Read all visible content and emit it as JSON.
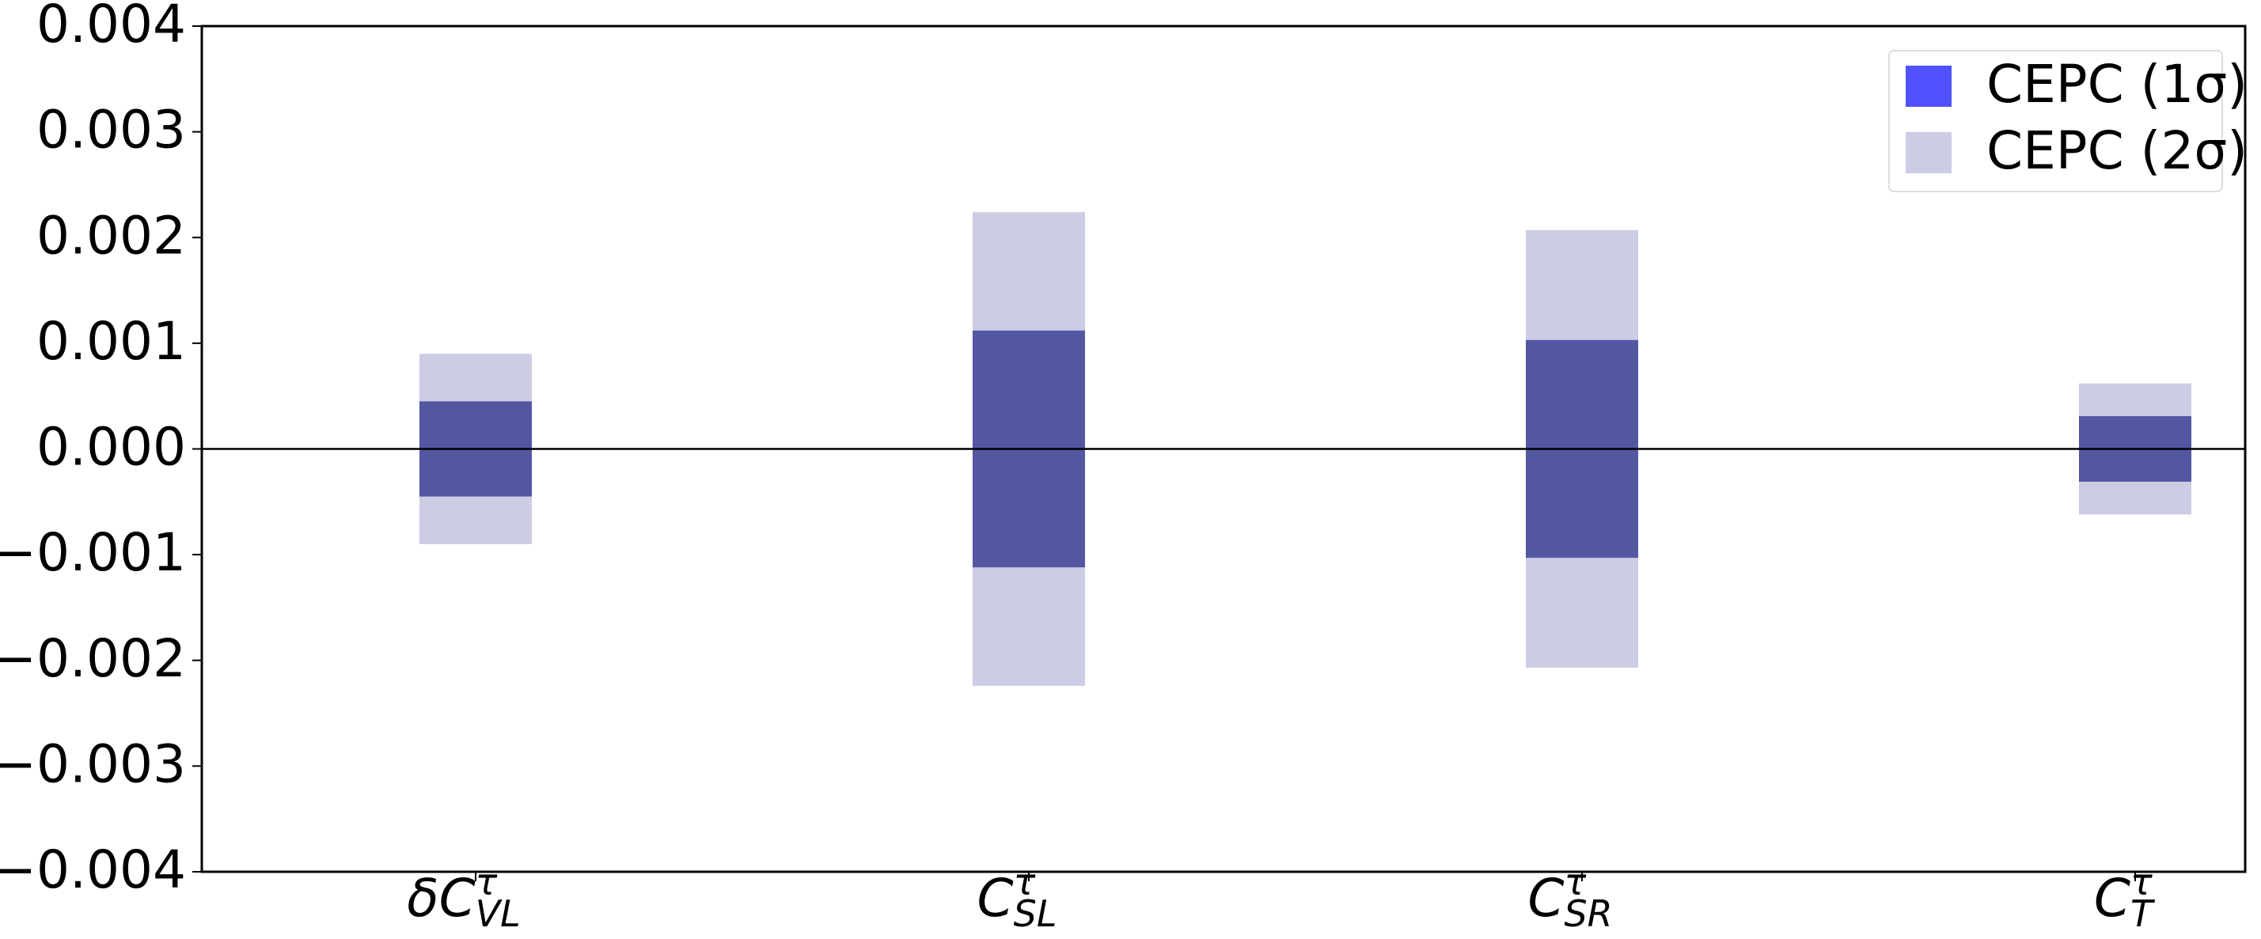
{
  "chart_data": {
    "type": "floating-bar",
    "categories": [
      {
        "base": "δC",
        "sup": "τ",
        "sub": "VL"
      },
      {
        "base": "C",
        "sup": "τ",
        "sub": "SL"
      },
      {
        "base": "C",
        "sup": "τ",
        "sub": "SR"
      },
      {
        "base": "C",
        "sup": "τ",
        "sub": "T"
      }
    ],
    "series": [
      {
        "name": "CEPC (2σ)",
        "color": "#cccce5",
        "legend_color": "#cccce5",
        "values": [
          [
            -0.0009,
            0.0009
          ],
          [
            -0.00224,
            0.00224
          ],
          [
            -0.00207,
            0.00207
          ],
          [
            -0.00062,
            0.00062
          ]
        ]
      },
      {
        "name": "CEPC (1σ)",
        "color": "#5356a1",
        "legend_color": "#5050ff",
        "values": [
          [
            -0.00045,
            0.00045
          ],
          [
            -0.00112,
            0.00112
          ],
          [
            -0.00103,
            0.00103
          ],
          [
            -0.00031,
            0.00031
          ]
        ]
      }
    ],
    "ylim": [
      -0.004,
      0.004
    ],
    "yticks": [
      {
        "value": -0.004,
        "label": "−0.004"
      },
      {
        "value": -0.003,
        "label": "−0.003"
      },
      {
        "value": -0.002,
        "label": "−0.002"
      },
      {
        "value": -0.001,
        "label": "−0.001"
      },
      {
        "value": 0,
        "label": "0.000"
      },
      0.001,
      0.002,
      0.003,
      0.004
    ],
    "zero_line": true,
    "legend": "upper right"
  }
}
